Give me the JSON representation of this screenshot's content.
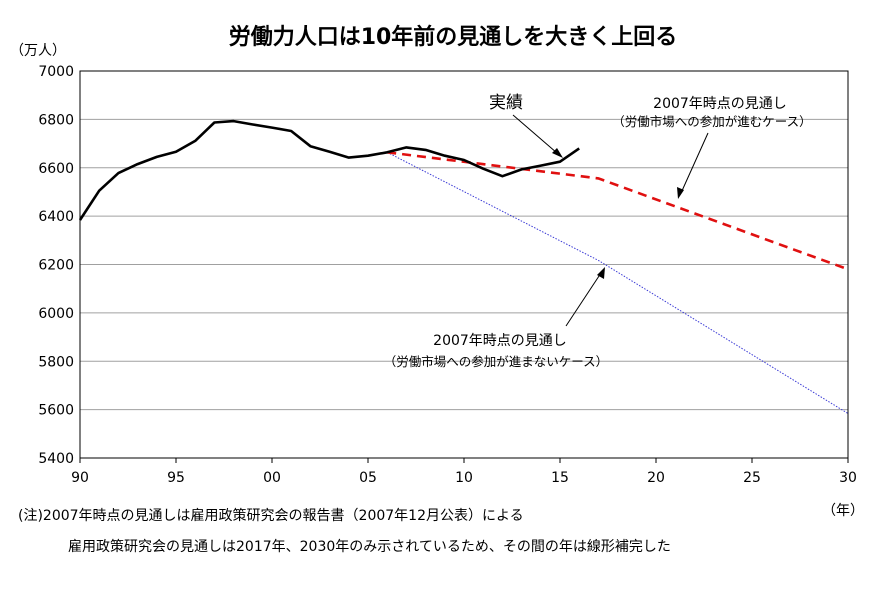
{
  "chart_data": {
    "type": "line",
    "title": "労働力人口は10年前の見通しを大きく上回る",
    "yunit": "（万人）",
    "xunit": "（年）",
    "xlim": [
      1990,
      2030
    ],
    "ylim": [
      5400,
      7000
    ],
    "yticks": [
      5400,
      5600,
      5800,
      6000,
      6200,
      6400,
      6600,
      6800,
      7000
    ],
    "ytick_labels": [
      "5400",
      "5600",
      "5800",
      "6000",
      "6200",
      "6400",
      "6600",
      "6800",
      "7000"
    ],
    "xticks": [
      1990,
      1995,
      2000,
      2005,
      2010,
      2015,
      2020,
      2025,
      2030
    ],
    "xtick_labels": [
      "90",
      "95",
      "00",
      "05",
      "10",
      "15",
      "20",
      "25",
      "30"
    ],
    "grid": "horizontal",
    "series": [
      {
        "key": "actual",
        "name": "実績",
        "color": "#000000",
        "style": "solid",
        "x": [
          1990,
          1991,
          1992,
          1993,
          1994,
          1995,
          1996,
          1997,
          1998,
          1999,
          2000,
          2001,
          2002,
          2003,
          2004,
          2005,
          2006,
          2007,
          2008,
          2009,
          2010,
          2011,
          2012,
          2013,
          2014,
          2015,
          2016
        ],
        "y": [
          6384,
          6505,
          6578,
          6615,
          6645,
          6666,
          6711,
          6787,
          6793,
          6779,
          6766,
          6752,
          6689,
          6666,
          6642,
          6650,
          6664,
          6684,
          6674,
          6650,
          6632,
          6596,
          6565,
          6593,
          6609,
          6625,
          6680
        ]
      },
      {
        "key": "proj_participation",
        "name": "2007年時点の見通し",
        "subname": "（労働市場への参加が進むケース）",
        "color": "#e01010",
        "style": "dashed",
        "x": [
          2006,
          2017,
          2030
        ],
        "y": [
          6664,
          6556,
          6180
        ]
      },
      {
        "key": "proj_no_participation",
        "name": "2007年時点の見通し",
        "subname": "（労働市場への参加が進まないケース）",
        "color": "#3b3bd6",
        "style": "dotted",
        "x": [
          2006,
          2017,
          2030
        ],
        "y": [
          6664,
          6217,
          5584
        ]
      }
    ],
    "notes": [
      "(注)2007年時点の見通しは雇用政策研究会の報告書（2007年12月公表）による",
      "雇用政策研究会の見通しは2017年、2030年のみ示されているため、その間の年は線形補完した"
    ]
  }
}
